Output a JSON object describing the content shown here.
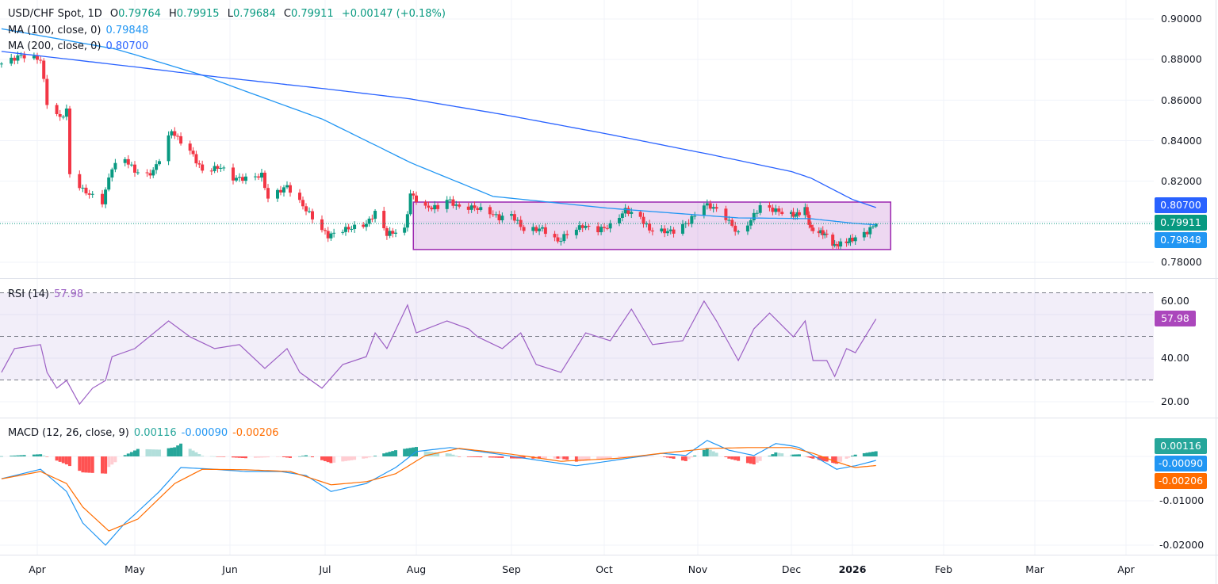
{
  "legend": {
    "symbol": "USD/CHF Spot, 1D",
    "o_label": "O",
    "o_value": "0.79764",
    "h_label": "H",
    "h_value": "0.79915",
    "l_label": "L",
    "l_value": "0.79684",
    "c_label": "C",
    "c_value": "0.79911",
    "change": "+0.00147 (+0.18%)",
    "ma100_label": "MA (100, close, 0)",
    "ma100_value": "0.79848",
    "ma200_label": "MA (200, close, 0)",
    "ma200_value": "0.80700",
    "rsi_label": "RSI (14)",
    "rsi_value": "57.98",
    "macd_label": "MACD (12, 26, close, 9)",
    "macd_hist_value": "0.00116",
    "macd_value": "-0.00090",
    "macd_signal_value": "-0.00206"
  },
  "colors": {
    "up": "#089981",
    "down": "#f23645",
    "ma100": "#2196f3",
    "ma200": "#2962ff",
    "rsi": "#9c5fc4",
    "rect": "#9c27b0",
    "macd": "#2196f3",
    "signal": "#ff6d00",
    "hist_up_strong": "#26a69a",
    "hist_up_weak": "#b2dfdb",
    "hist_down_strong": "#ff5252",
    "hist_down_weak": "#ffcdd2"
  },
  "price_axis": {
    "ticks": [
      "0.90000",
      "0.88000",
      "0.86000",
      "0.84000",
      "0.82000",
      "0.78000"
    ],
    "tags": [
      {
        "text": "0.80700",
        "color": "#2962ff"
      },
      {
        "text": "0.79911",
        "color": "#089981"
      },
      {
        "text": "0.79848",
        "color": "#2196f3"
      }
    ]
  },
  "rsi_axis": {
    "ticks": [
      "60.00",
      "40.00",
      "20.00"
    ],
    "tag": {
      "text": "57.98",
      "color": "#ab47bc"
    }
  },
  "macd_axis": {
    "ticks": [
      "-0.01000",
      "-0.02000"
    ],
    "tags": [
      {
        "text": "0.00116",
        "color": "#26a69a"
      },
      {
        "text": "-0.00090",
        "color": "#2196f3"
      },
      {
        "text": "-0.00206",
        "color": "#ff6d00"
      }
    ]
  },
  "time_axis": [
    {
      "label": "Apr",
      "date": "2025-04-01"
    },
    {
      "label": "May",
      "date": "2025-05-01"
    },
    {
      "label": "Jun",
      "date": "2025-06-01"
    },
    {
      "label": "Jul",
      "date": "2025-07-01"
    },
    {
      "label": "Aug",
      "date": "2025-08-01"
    },
    {
      "label": "Sep",
      "date": "2025-09-01"
    },
    {
      "label": "Oct",
      "date": "2025-10-01"
    },
    {
      "label": "Nov",
      "date": "2025-11-01"
    },
    {
      "label": "Dec",
      "date": "2025-12-01"
    },
    {
      "label": "2026",
      "date": "2026-01-01",
      "bold": true
    },
    {
      "label": "Feb",
      "date": "2026-02-01"
    },
    {
      "label": "Mar",
      "date": "2026-03-01"
    },
    {
      "label": "Apr",
      "date": "2026-04-01"
    }
  ],
  "chart_data": {
    "type": "candlestick",
    "symbol": "USD/CHF",
    "interval": "1D",
    "price_range": [
      0.775,
      0.905
    ],
    "close_anchors": [
      [
        "2025-03-21",
        0.878
      ],
      [
        "2025-03-27",
        0.882
      ],
      [
        "2025-04-02",
        0.88
      ],
      [
        "2025-04-04",
        0.8586
      ],
      [
        "2025-04-08",
        0.851
      ],
      [
        "2025-04-10",
        0.855
      ],
      [
        "2025-04-11",
        0.8234
      ],
      [
        "2025-04-15",
        0.8156
      ],
      [
        "2025-04-21",
        0.8097
      ],
      [
        "2025-04-24",
        0.827
      ],
      [
        "2025-04-28",
        0.831
      ],
      [
        "2025-05-01",
        0.825
      ],
      [
        "2025-05-05",
        0.823
      ],
      [
        "2025-05-07",
        0.825
      ],
      [
        "2025-05-09",
        0.831
      ],
      [
        "2025-05-13",
        0.845
      ],
      [
        "2025-05-15",
        0.841
      ],
      [
        "2025-05-19",
        0.835
      ],
      [
        "2025-05-23",
        0.825
      ],
      [
        "2025-05-29",
        0.827
      ],
      [
        "2025-06-02",
        0.8214
      ],
      [
        "2025-06-06",
        0.8214
      ],
      [
        "2025-06-11",
        0.823
      ],
      [
        "2025-06-13",
        0.8117
      ],
      [
        "2025-06-19",
        0.8175
      ],
      [
        "2025-06-20",
        0.8155
      ],
      [
        "2025-06-26",
        0.804
      ],
      [
        "2025-06-30",
        0.796
      ],
      [
        "2025-07-02",
        0.793
      ],
      [
        "2025-07-07",
        0.796
      ],
      [
        "2025-07-10",
        0.797
      ],
      [
        "2025-07-15",
        0.7988
      ],
      [
        "2025-07-18",
        0.8046
      ],
      [
        "2025-07-22",
        0.794
      ],
      [
        "2025-07-28",
        0.796
      ],
      [
        "2025-07-30",
        0.8136
      ],
      [
        "2025-08-04",
        0.807
      ],
      [
        "2025-08-08",
        0.807
      ],
      [
        "2025-08-11",
        0.811
      ],
      [
        "2025-08-15",
        0.807
      ],
      [
        "2025-08-20",
        0.807
      ],
      [
        "2025-08-25",
        0.8046
      ],
      [
        "2025-08-28",
        0.8019
      ],
      [
        "2025-09-01",
        0.8035
      ],
      [
        "2025-09-05",
        0.796
      ],
      [
        "2025-09-11",
        0.7965
      ],
      [
        "2025-09-16",
        0.7902
      ],
      [
        "2025-09-19",
        0.794
      ],
      [
        "2025-09-24",
        0.798
      ],
      [
        "2025-09-29",
        0.796
      ],
      [
        "2025-10-03",
        0.798
      ],
      [
        "2025-10-08",
        0.8058
      ],
      [
        "2025-10-13",
        0.802
      ],
      [
        "2025-10-16",
        0.796
      ],
      [
        "2025-10-21",
        0.7953
      ],
      [
        "2025-10-24",
        0.7953
      ],
      [
        "2025-10-29",
        0.8
      ],
      [
        "2025-11-03",
        0.8085
      ],
      [
        "2025-11-06",
        0.807
      ],
      [
        "2025-11-10",
        0.802
      ],
      [
        "2025-11-14",
        0.794
      ],
      [
        "2025-11-17",
        0.7988
      ],
      [
        "2025-11-21",
        0.8077
      ],
      [
        "2025-11-25",
        0.806
      ],
      [
        "2025-11-28",
        0.8046
      ],
      [
        "2025-12-03",
        0.803
      ],
      [
        "2025-12-08",
        0.8066
      ],
      [
        "2025-12-11",
        0.796
      ],
      [
        "2025-12-15",
        0.795
      ],
      [
        "2025-12-18",
        0.794
      ],
      [
        "2025-12-23",
        0.7882
      ],
      [
        "2025-12-29",
        0.79
      ],
      [
        "2026-01-02",
        0.792
      ],
      [
        "2026-01-06",
        0.795
      ],
      [
        "2026-01-09",
        0.79911
      ]
    ],
    "last_bar": {
      "open": 0.79764,
      "high": 0.79915,
      "low": 0.79684,
      "close": 0.79911
    },
    "ma100": [
      [
        "2025-03-21",
        0.8952
      ],
      [
        "2025-04-25",
        0.8852
      ],
      [
        "2025-05-23",
        0.8723
      ],
      [
        "2025-06-30",
        0.8507
      ],
      [
        "2025-07-30",
        0.8292
      ],
      [
        "2025-08-26",
        0.8125
      ],
      [
        "2025-10-03",
        0.8066
      ],
      [
        "2025-11-14",
        0.8019
      ],
      [
        "2025-12-11",
        0.8015
      ],
      [
        "2026-01-09",
        0.79848
      ]
    ],
    "ma200": [
      [
        "2025-03-21",
        0.884
      ],
      [
        "2025-05-23",
        0.8723
      ],
      [
        "2025-07-30",
        0.8606
      ],
      [
        "2025-08-30",
        0.8527
      ],
      [
        "2025-10-03",
        0.843
      ],
      [
        "2025-11-05",
        0.8332
      ],
      [
        "2025-12-11",
        0.8215
      ],
      [
        "2026-01-09",
        0.807
      ]
    ],
    "range_box": {
      "start": "2025-07-31",
      "end": "2026-01-14",
      "top": 0.8097,
      "bottom": 0.7863
    },
    "rsi": {
      "range": [
        12,
        75
      ],
      "levels": [
        70,
        50,
        30
      ],
      "values": [
        [
          "2025-03-21",
          33.5
        ],
        [
          "2025-03-25",
          44.4
        ],
        [
          "2025-04-02",
          46.2
        ],
        [
          "2025-04-04",
          33.5
        ],
        [
          "2025-04-07",
          26.2
        ],
        [
          "2025-04-10",
          29.8
        ],
        [
          "2025-04-14",
          18.9
        ],
        [
          "2025-04-18",
          26.2
        ],
        [
          "2025-04-22",
          29.8
        ],
        [
          "2025-04-24",
          40.7
        ],
        [
          "2025-05-01",
          44.4
        ],
        [
          "2025-05-12",
          57.1
        ],
        [
          "2025-05-19",
          49.8
        ],
        [
          "2025-05-27",
          44.4
        ],
        [
          "2025-06-04",
          46.2
        ],
        [
          "2025-06-12",
          35.3
        ],
        [
          "2025-06-19",
          44.4
        ],
        [
          "2025-06-23",
          33.5
        ],
        [
          "2025-06-30",
          26.2
        ],
        [
          "2025-07-07",
          37.1
        ],
        [
          "2025-07-15",
          40.7
        ],
        [
          "2025-07-18",
          51.6
        ],
        [
          "2025-07-22",
          44.4
        ],
        [
          "2025-07-29",
          64.4
        ],
        [
          "2025-08-01",
          51.6
        ],
        [
          "2025-08-11",
          57.1
        ],
        [
          "2025-08-18",
          53.5
        ],
        [
          "2025-08-21",
          49.8
        ],
        [
          "2025-08-29",
          44.4
        ],
        [
          "2025-09-04",
          51.6
        ],
        [
          "2025-09-09",
          37.1
        ],
        [
          "2025-09-17",
          33.5
        ],
        [
          "2025-09-25",
          51.6
        ],
        [
          "2025-10-03",
          48.0
        ],
        [
          "2025-10-10",
          62.5
        ],
        [
          "2025-10-17",
          46.2
        ],
        [
          "2025-10-27",
          48.0
        ],
        [
          "2025-11-03",
          66.2
        ],
        [
          "2025-11-07",
          57.1
        ],
        [
          "2025-11-14",
          38.9
        ],
        [
          "2025-11-19",
          53.5
        ],
        [
          "2025-11-24",
          60.7
        ],
        [
          "2025-12-02",
          49.8
        ],
        [
          "2025-12-08",
          57.1
        ],
        [
          "2025-12-12",
          38.9
        ],
        [
          "2025-12-19",
          38.9
        ],
        [
          "2025-12-23",
          31.6
        ],
        [
          "2025-12-29",
          44.4
        ],
        [
          "2026-01-02",
          42.5
        ],
        [
          "2026-01-09",
          57.98
        ]
      ]
    },
    "macd": {
      "params": [
        12,
        26,
        9
      ],
      "range": [
        -0.0215,
        0.0055
      ],
      "macd_line": [
        [
          "2025-03-20",
          -0.0052
        ],
        [
          "2025-04-02",
          -0.0029
        ],
        [
          "2025-04-10",
          -0.0079
        ],
        [
          "2025-04-15",
          -0.015
        ],
        [
          "2025-04-22",
          -0.02
        ],
        [
          "2025-04-28",
          -0.015
        ],
        [
          "2025-05-09",
          -0.0079
        ],
        [
          "2025-05-16",
          -0.0025
        ],
        [
          "2025-05-27",
          -0.0029
        ],
        [
          "2025-06-06",
          -0.0034
        ],
        [
          "2025-06-17",
          -0.0034
        ],
        [
          "2025-06-25",
          -0.0043
        ],
        [
          "2025-07-03",
          -0.0079
        ],
        [
          "2025-07-15",
          -0.0061
        ],
        [
          "2025-07-25",
          -0.0025
        ],
        [
          "2025-08-01",
          0.0011
        ],
        [
          "2025-08-12",
          0.002
        ],
        [
          "2025-08-26",
          0.0007
        ],
        [
          "2025-09-08",
          -0.0007
        ],
        [
          "2025-09-22",
          -0.0021
        ],
        [
          "2025-10-06",
          -0.0007
        ],
        [
          "2025-10-20",
          0.0007
        ],
        [
          "2025-10-28",
          0.0002
        ],
        [
          "2025-11-04",
          0.0036
        ],
        [
          "2025-11-11",
          0.0014
        ],
        [
          "2025-11-19",
          0.0002
        ],
        [
          "2025-11-26",
          0.0029
        ],
        [
          "2025-12-05",
          0.002
        ],
        [
          "2025-12-12",
          0.0002
        ],
        [
          "2025-12-24",
          -0.0029
        ],
        [
          "2026-01-02",
          -0.0021
        ],
        [
          "2026-01-09",
          -0.0009
        ]
      ],
      "signal_line": [
        [
          "2025-03-20",
          -0.0052
        ],
        [
          "2025-04-02",
          -0.0034
        ],
        [
          "2025-04-10",
          -0.0061
        ],
        [
          "2025-04-15",
          -0.0114
        ],
        [
          "2025-04-23",
          -0.0168
        ],
        [
          "2025-05-02",
          -0.0141
        ],
        [
          "2025-05-14",
          -0.0061
        ],
        [
          "2025-05-23",
          -0.0029
        ],
        [
          "2025-06-06",
          -0.003
        ],
        [
          "2025-06-20",
          -0.0034
        ],
        [
          "2025-07-03",
          -0.0064
        ],
        [
          "2025-07-15",
          -0.0057
        ],
        [
          "2025-07-25",
          -0.0039
        ],
        [
          "2025-08-04",
          0.0002
        ],
        [
          "2025-08-15",
          0.0018
        ],
        [
          "2025-09-01",
          0.0005
        ],
        [
          "2025-09-17",
          -0.0011
        ],
        [
          "2025-10-06",
          -0.0004
        ],
        [
          "2025-10-20",
          0.0007
        ],
        [
          "2025-11-05",
          0.0018
        ],
        [
          "2025-11-17",
          0.002
        ],
        [
          "2025-12-01",
          0.002
        ],
        [
          "2025-12-12",
          0.0007
        ],
        [
          "2025-12-23",
          -0.0011
        ],
        [
          "2026-01-02",
          -0.0025
        ],
        [
          "2026-01-09",
          -0.00206
        ]
      ]
    }
  }
}
